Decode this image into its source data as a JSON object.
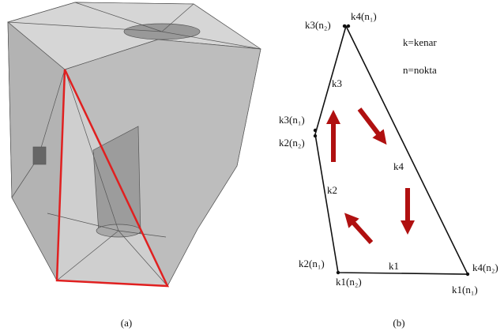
{
  "panel_a": {
    "caption": "(a)"
  },
  "panel_b": {
    "caption": "(b)",
    "legend": [
      "k=kenar",
      "n=nokta"
    ],
    "labels": [
      "k3(n₂)",
      "k4(n₁)",
      "k3",
      "k3(n₁)",
      "k2(n₂)",
      "k4",
      "k2",
      "k2(n₁)",
      "k1",
      "k4(n₂)",
      "k1(n₂)",
      "k1(n₁)"
    ]
  }
}
